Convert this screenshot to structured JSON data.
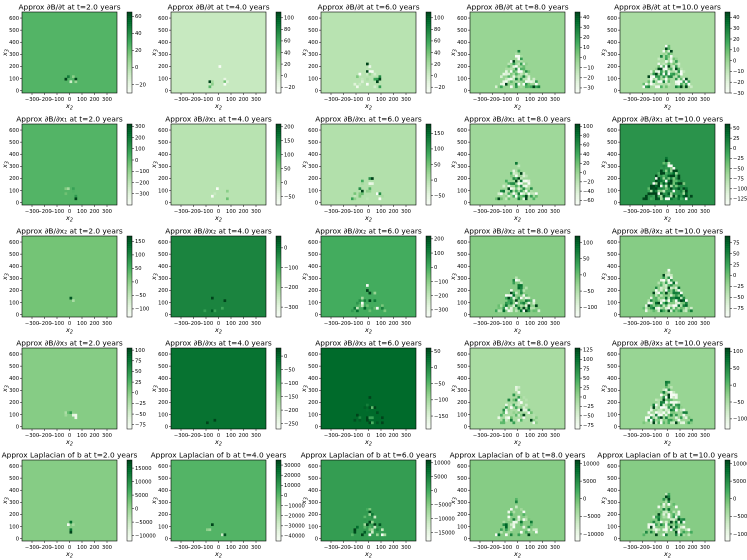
{
  "chart_data": {
    "type": "heatmap",
    "colormap": "Greens",
    "xlabel": "x_2",
    "ylabel": "x_3",
    "x_ticks": [
      -300,
      -200,
      -100,
      0,
      100,
      200,
      300
    ],
    "x_tick_labels": [
      "−300",
      "−200",
      "−100",
      "0",
      "100",
      "200",
      "300"
    ],
    "y_ticks": [
      0,
      100,
      200,
      300,
      400,
      500,
      600
    ],
    "xlim": [
      -380,
      380
    ],
    "ylim": [
      -20,
      650
    ],
    "rows": [
      {
        "quantity": "dbdt",
        "panels": [
          {
            "title": "Approx ∂B/∂t at t=2.0 years",
            "vmin": -30,
            "vmax": 65,
            "background": 0.58,
            "spread": 0.1,
            "activity": 0.05,
            "cbar_ticks": [
              60,
              40,
              20,
              0,
              -20
            ],
            "cbar_labels": [
              "60",
              "40",
              "20",
              "0",
              "−20"
            ]
          },
          {
            "title": "Approx ∂B/∂t at t=4.0 years",
            "vmin": -30,
            "vmax": 110,
            "background": 0.25,
            "spread": 0.45,
            "activity": 0.08,
            "cbar_ticks": [
              100,
              80,
              60,
              40,
              20,
              0,
              -20
            ],
            "cbar_labels": [
              "100",
              "80",
              "60",
              "40",
              "20",
              "0",
              "−20"
            ]
          },
          {
            "title": "Approx ∂B/∂t at t=6.0 years",
            "vmin": -30,
            "vmax": 110,
            "background": 0.3,
            "spread": 0.6,
            "activity": 0.3,
            "cbar_ticks": [
              100,
              80,
              60,
              40,
              20,
              0,
              -20
            ],
            "cbar_labels": [
              "100",
              "80",
              "60",
              "40",
              "20",
              "0",
              "−20"
            ]
          },
          {
            "title": "Approx ∂B/∂t at t=8.0 years",
            "vmin": -35,
            "vmax": 45,
            "background": 0.4,
            "spread": 0.85,
            "activity": 0.6,
            "cbar_ticks": [
              40,
              30,
              20,
              10,
              0,
              -10,
              -20,
              -30
            ],
            "cbar_labels": [
              "40",
              "30",
              "20",
              "10",
              "0",
              "−10",
              "−20",
              "−30"
            ]
          },
          {
            "title": "Approx ∂B/∂t at t=10.0 years",
            "vmin": -30,
            "vmax": 45,
            "background": 0.35,
            "spread": 1.0,
            "activity": 0.75,
            "cbar_ticks": [
              40,
              30,
              20,
              10,
              0,
              -10,
              -20,
              -30
            ],
            "cbar_labels": [
              "40",
              "30",
              "20",
              "10",
              "0",
              "−10",
              "−20",
              "−30"
            ]
          }
        ]
      },
      {
        "quantity": "dbdx1",
        "panels": [
          {
            "title": "Approx ∂B/∂x₁ at t=2.0 years",
            "vmin": -400,
            "vmax": 320,
            "background": 0.58,
            "spread": 0.1,
            "activity": 0.05,
            "cbar_ticks": [
              300,
              200,
              100,
              0,
              -100,
              -200,
              -300
            ],
            "cbar_labels": [
              "300",
              "200",
              "100",
              "0",
              "−100",
              "−200",
              "−300"
            ]
          },
          {
            "title": "Approx ∂B/∂x₁ at t=4.0 years",
            "vmin": -80,
            "vmax": 210,
            "background": 0.3,
            "spread": 0.45,
            "activity": 0.1,
            "cbar_ticks": [
              200,
              150,
              100,
              50,
              0,
              -50
            ],
            "cbar_labels": [
              "200",
              "150",
              "100",
              "50",
              "0",
              "−50"
            ]
          },
          {
            "title": "Approx ∂B/∂x₁ at t=6.0 years",
            "vmin": -80,
            "vmax": 180,
            "background": 0.32,
            "spread": 0.6,
            "activity": 0.35,
            "cbar_ticks": [
              150,
              100,
              50,
              0,
              -50
            ],
            "cbar_labels": [
              "150",
              "100",
              "50",
              "0",
              "−50"
            ]
          },
          {
            "title": "Approx ∂B/∂x₁ at t=8.0 years",
            "vmin": -70,
            "vmax": 105,
            "background": 0.38,
            "spread": 0.85,
            "activity": 0.6,
            "cbar_ticks": [
              100,
              80,
              60,
              40,
              20,
              0,
              -20,
              -40,
              -60
            ],
            "cbar_labels": [
              "100",
              "80",
              "60",
              "40",
              "20",
              "0",
              "−20",
              "−40",
              "−60"
            ]
          },
          {
            "title": "Approx ∂B/∂x₁ at t=10.0 years",
            "vmin": -140,
            "vmax": 60,
            "background": 0.72,
            "spread": 1.0,
            "activity": 0.8,
            "cbar_ticks": [
              50,
              25,
              0,
              -25,
              -50,
              -75,
              -100,
              -125
            ],
            "cbar_labels": [
              "50",
              "25",
              "0",
              "−25",
              "−50",
              "−75",
              "−100",
              "−125"
            ]
          }
        ]
      },
      {
        "quantity": "dbdx2",
        "panels": [
          {
            "title": "Approx ∂B/∂x₂ at t=2.0 years",
            "vmin": -130,
            "vmax": 170,
            "background": 0.5,
            "spread": 0.1,
            "activity": 0.05,
            "cbar_ticks": [
              150,
              100,
              50,
              0,
              -50,
              -100
            ],
            "cbar_labels": [
              "150",
              "100",
              "50",
              "0",
              "−50",
              "−100"
            ]
          },
          {
            "title": "Approx ∂B/∂x₂ at t=4.0 years",
            "vmin": -350,
            "vmax": 60,
            "background": 0.78,
            "spread": 0.45,
            "activity": 0.1,
            "cbar_ticks": [
              0,
              -100,
              -200,
              -300
            ],
            "cbar_labels": [
              "0",
              "−100",
              "−200",
              "−300"
            ]
          },
          {
            "title": "Approx ∂B/∂x₂ at t=6.0 years",
            "vmin": -350,
            "vmax": 220,
            "background": 0.62,
            "spread": 0.6,
            "activity": 0.35,
            "cbar_ticks": [
              200,
              100,
              0,
              -100,
              -200,
              -300
            ],
            "cbar_labels": [
              "200",
              "100",
              "0",
              "−100",
              "−200",
              "−300"
            ]
          },
          {
            "title": "Approx ∂B/∂x₂ at t=8.0 years",
            "vmin": -130,
            "vmax": 120,
            "background": 0.45,
            "spread": 0.85,
            "activity": 0.6,
            "cbar_ticks": [
              100,
              50,
              0,
              -50,
              -100
            ],
            "cbar_labels": [
              "100",
              "50",
              "0",
              "−50",
              "−100"
            ]
          },
          {
            "title": "Approx ∂B/∂x₂ at t=10.0 years",
            "vmin": -95,
            "vmax": 90,
            "background": 0.45,
            "spread": 1.0,
            "activity": 0.8,
            "cbar_ticks": [
              75,
              50,
              25,
              0,
              -25,
              -50,
              -75
            ],
            "cbar_labels": [
              "75",
              "50",
              "25",
              "0",
              "−25",
              "−50",
              "−75"
            ]
          }
        ]
      },
      {
        "quantity": "dbdx3",
        "panels": [
          {
            "title": "Approx ∂B/∂x₃ at t=2.0 years",
            "vmin": -85,
            "vmax": 105,
            "background": 0.45,
            "spread": 0.1,
            "activity": 0.05,
            "cbar_ticks": [
              100,
              75,
              50,
              25,
              0,
              -25,
              -50,
              -75
            ],
            "cbar_labels": [
              "100",
              "75",
              "50",
              "25",
              "0",
              "−25",
              "−50",
              "−75"
            ]
          },
          {
            "title": "Approx ∂B/∂x₃ at t=4.0 years",
            "vmin": -270,
            "vmax": 30,
            "background": 0.85,
            "spread": 0.45,
            "activity": 0.1,
            "cbar_ticks": [
              0,
              -50,
              -100,
              -150,
              -200,
              -250
            ],
            "cbar_labels": [
              "0",
              "−50",
              "−100",
              "−150",
              "−200",
              "−250"
            ]
          },
          {
            "title": "Approx ∂B/∂x₃ at t=6.0 years",
            "vmin": -190,
            "vmax": 60,
            "background": 0.88,
            "spread": 0.6,
            "activity": 0.35,
            "cbar_ticks": [
              50,
              0,
              -50,
              -100,
              -150
            ],
            "cbar_labels": [
              "50",
              "0",
              "−50",
              "−100",
              "−150"
            ]
          },
          {
            "title": "Approx ∂B/∂x₃ at t=8.0 years",
            "vmin": -85,
            "vmax": 130,
            "background": 0.35,
            "spread": 0.85,
            "activity": 0.55,
            "cbar_ticks": [
              125,
              100,
              75,
              50,
              25,
              0,
              -25,
              -50,
              -75
            ],
            "cbar_labels": [
              "125",
              "100",
              "75",
              "50",
              "25",
              "0",
              "−25",
              "−50",
              "−75"
            ]
          },
          {
            "title": "Approx ∂B/∂x₃ at t=10.0 years",
            "vmin": -130,
            "vmax": 110,
            "background": 0.4,
            "spread": 1.0,
            "activity": 0.75,
            "cbar_ticks": [
              100,
              50,
              0,
              -50,
              -100
            ],
            "cbar_labels": [
              "100",
              "50",
              "0",
              "−50",
              "−100"
            ]
          }
        ]
      },
      {
        "quantity": "laplacian",
        "panels": [
          {
            "title": "Approx Laplacian of b at t=2.0 years",
            "vmin": -12000,
            "vmax": 18000,
            "background": 0.45,
            "spread": 0.1,
            "activity": 0.05,
            "cbar_ticks": [
              15000,
              10000,
              5000,
              0,
              -5000,
              -10000
            ],
            "cbar_labels": [
              "15000",
              "10000",
              "5000",
              "0",
              "−5000",
              "−10000"
            ]
          },
          {
            "title": "Approx Laplacian of b at t=4.0 years",
            "vmin": -45000,
            "vmax": 35000,
            "background": 0.58,
            "spread": 0.45,
            "activity": 0.1,
            "cbar_ticks": [
              30000,
              20000,
              10000,
              0,
              -10000,
              -20000,
              -30000,
              -40000
            ],
            "cbar_labels": [
              "30000",
              "20000",
              "10000",
              "0",
              "−10000",
              "−20000",
              "−30000",
              "−40000"
            ]
          },
          {
            "title": "Approx Laplacian of b at t=6.0 years",
            "vmin": -18000,
            "vmax": 11000,
            "background": 0.68,
            "spread": 0.6,
            "activity": 0.35,
            "cbar_ticks": [
              10000,
              5000,
              0,
              -5000,
              -10000,
              -15000
            ],
            "cbar_labels": [
              "10000",
              "5000",
              "0",
              "−5000",
              "−10000",
              "−15000"
            ]
          },
          {
            "title": "Approx Laplacian of b at t=8.0 years",
            "vmin": -12000,
            "vmax": 11000,
            "background": 0.45,
            "spread": 0.85,
            "activity": 0.5,
            "cbar_ticks": [
              10000,
              5000,
              0,
              -5000,
              -10000
            ],
            "cbar_labels": [
              "10000",
              "5000",
              "0",
              "−5000",
              "−10000"
            ]
          },
          {
            "title": "Approx Laplacian of b at t=10.0 years",
            "vmin": -12000,
            "vmax": 11000,
            "background": 0.45,
            "spread": 1.0,
            "activity": 0.6,
            "cbar_ticks": [
              10000,
              5000,
              0,
              -5000,
              -10000
            ],
            "cbar_labels": [
              "10000",
              "5000",
              "0",
              "−5000",
              "−10000"
            ]
          }
        ]
      }
    ]
  }
}
